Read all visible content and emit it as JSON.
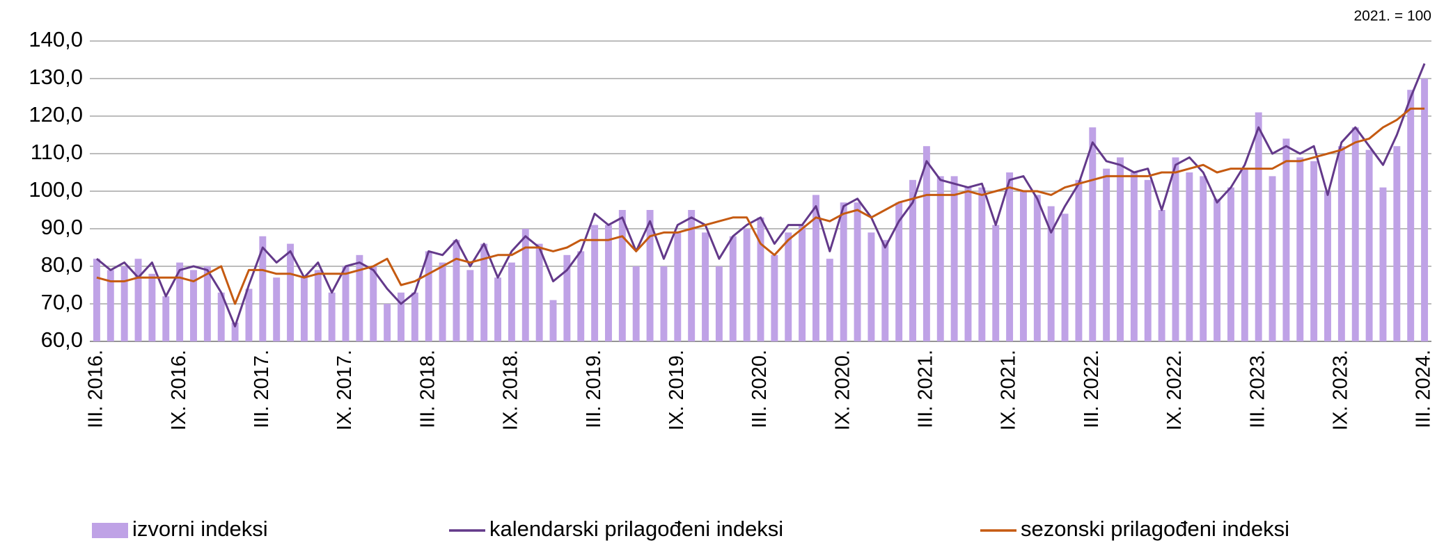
{
  "chart_data": {
    "type": "bar-line",
    "annotation": "2021. = 100",
    "categories": [
      "III. 2016.",
      null,
      null,
      null,
      null,
      null,
      "IX. 2016.",
      null,
      null,
      null,
      null,
      null,
      "III. 2017.",
      null,
      null,
      null,
      null,
      null,
      "IX. 2017.",
      null,
      null,
      null,
      null,
      null,
      "III. 2018.",
      null,
      null,
      null,
      null,
      null,
      "IX. 2018.",
      null,
      null,
      null,
      null,
      null,
      "III. 2019.",
      null,
      null,
      null,
      null,
      null,
      "IX. 2019.",
      null,
      null,
      null,
      null,
      null,
      "III. 2020.",
      null,
      null,
      null,
      null,
      null,
      "IX. 2020.",
      null,
      null,
      null,
      null,
      null,
      "III. 2021.",
      null,
      null,
      null,
      null,
      null,
      "IX. 2021.",
      null,
      null,
      null,
      null,
      null,
      "III. 2022.",
      null,
      null,
      null,
      null,
      null,
      "IX. 2022.",
      null,
      null,
      null,
      null,
      null,
      "III. 2023.",
      null,
      null,
      null,
      null,
      null,
      "IX. 2023.",
      null,
      null,
      null,
      null,
      null,
      "III. 2024."
    ],
    "series": [
      {
        "name": "izvorni indeksi",
        "kind": "bar",
        "color": "#bfa2e6",
        "values": [
          82,
          79,
          80,
          82,
          78,
          72,
          81,
          79,
          80,
          73,
          65,
          74,
          88,
          77,
          86,
          77,
          79,
          73,
          80,
          83,
          80,
          70,
          73,
          73,
          84,
          81,
          87,
          79,
          86,
          77,
          81,
          90,
          86,
          71,
          83,
          84,
          91,
          91,
          95,
          80,
          95,
          80,
          89,
          95,
          89,
          80,
          88,
          90,
          93,
          83,
          89,
          91,
          99,
          82,
          97,
          97,
          89,
          87,
          97,
          103,
          112,
          104,
          104,
          101,
          101,
          91,
          105,
          100,
          99,
          96,
          94,
          103,
          117,
          106,
          109,
          105,
          103,
          95,
          109,
          105,
          104,
          98,
          101,
          106,
          121,
          104,
          114,
          109,
          108,
          100,
          112,
          117,
          111,
          101,
          112,
          127,
          130
        ]
      },
      {
        "name": "kalendarski prilagođeni indeksi",
        "kind": "line",
        "color": "#63398a",
        "values": [
          82,
          79,
          81,
          77,
          81,
          72,
          79,
          80,
          79,
          73,
          64,
          75,
          85,
          81,
          84,
          77,
          81,
          73,
          80,
          81,
          79,
          74,
          70,
          73,
          84,
          83,
          87,
          80,
          86,
          77,
          84,
          88,
          85,
          76,
          79,
          84,
          94,
          91,
          93,
          84,
          92,
          82,
          91,
          93,
          91,
          82,
          88,
          91,
          93,
          86,
          91,
          91,
          96,
          84,
          96,
          98,
          93,
          85,
          92,
          97,
          108,
          103,
          102,
          101,
          102,
          91,
          103,
          104,
          98,
          89,
          96,
          102,
          113,
          108,
          107,
          105,
          106,
          95,
          107,
          109,
          105,
          97,
          101,
          107,
          117,
          110,
          112,
          110,
          112,
          99,
          113,
          117,
          112,
          107,
          115,
          125,
          134
        ]
      },
      {
        "name": "sezonski prilagođeni indeksi",
        "kind": "line",
        "color": "#c55a11",
        "values": [
          77,
          76,
          76,
          77,
          77,
          77,
          77,
          76,
          78,
          80,
          70,
          79,
          79,
          78,
          78,
          77,
          78,
          78,
          78,
          79,
          80,
          82,
          75,
          76,
          78,
          80,
          82,
          81,
          82,
          83,
          83,
          85,
          85,
          84,
          85,
          87,
          87,
          87,
          88,
          84,
          88,
          89,
          89,
          90,
          91,
          92,
          93,
          93,
          86,
          83,
          87,
          90,
          93,
          92,
          94,
          95,
          93,
          95,
          97,
          98,
          99,
          99,
          99,
          100,
          99,
          100,
          101,
          100,
          100,
          99,
          101,
          102,
          103,
          104,
          104,
          104,
          104,
          105,
          105,
          106,
          107,
          105,
          106,
          106,
          106,
          106,
          108,
          108,
          109,
          110,
          111,
          113,
          114,
          117,
          119,
          122,
          122
        ]
      }
    ],
    "ylim": [
      60,
      140
    ],
    "yticks": [
      {
        "value": 60,
        "label": "60,0"
      },
      {
        "value": 70,
        "label": "70,0"
      },
      {
        "value": 80,
        "label": "80,0"
      },
      {
        "value": 90,
        "label": "90,0"
      },
      {
        "value": 100,
        "label": "100,0"
      },
      {
        "value": 110,
        "label": "110,0"
      },
      {
        "value": 120,
        "label": "120,0"
      },
      {
        "value": 130,
        "label": "130,0"
      },
      {
        "value": 140,
        "label": "140,0"
      }
    ],
    "grid": true,
    "legend": "bottom"
  }
}
